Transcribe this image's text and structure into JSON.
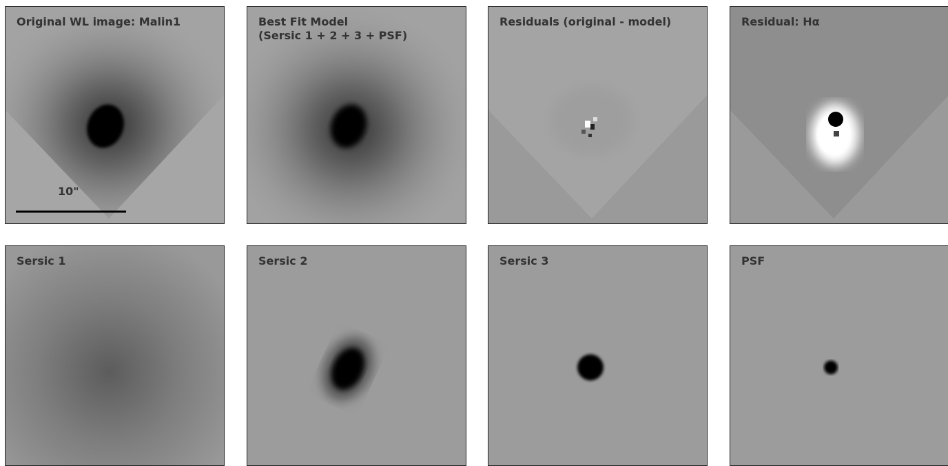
{
  "panels": [
    {
      "title": "Original WL image: Malin1",
      "scale_label": "10\""
    },
    {
      "title": "Best Fit Model",
      "subtitle": "(Sersic 1 + 2 + 3 + PSF)"
    },
    {
      "title": "Residuals (original - model)"
    },
    {
      "title": "Residual: Hα"
    },
    {
      "title": "Sersic 1"
    },
    {
      "title": "Sersic 2"
    },
    {
      "title": "Sersic 3"
    },
    {
      "title": "PSF"
    }
  ]
}
